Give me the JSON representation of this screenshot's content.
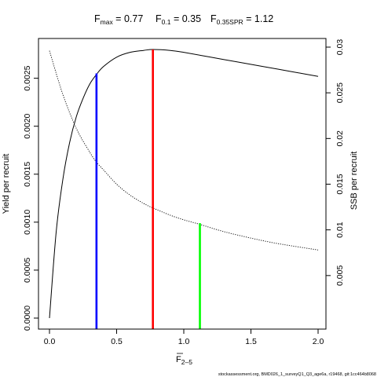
{
  "chart_data": {
    "type": "line",
    "title_parts": {
      "fmax_symbol": "F",
      "fmax_sub": "max",
      "fmax_value": " = 0.77",
      "f01_symbol": "F",
      "f01_sub": "0.1",
      "f01_value": " = 0.35",
      "fspr_symbol": "F",
      "fspr_sub": "0.35SPR",
      "fspr_value": " = 1.12"
    },
    "xlabel": "F",
    "xlabel_sub": "2–5",
    "ylabel": "Yield per recruit",
    "y2label": "SSB per recruit",
    "xlim": [
      0,
      2
    ],
    "ylim": [
      0,
      0.0028
    ],
    "y2lim": [
      0,
      0.03
    ],
    "x_ticks": [
      "0.0",
      "0.5",
      "1.0",
      "1.5",
      "2.0"
    ],
    "x_tick_values": [
      0,
      0.5,
      1.0,
      1.5,
      2.0
    ],
    "y_ticks": [
      "0.0000",
      "0.0005",
      "0.0010",
      "0.0015",
      "0.0020",
      "0.0025"
    ],
    "y_tick_values": [
      0,
      0.0005,
      0.001,
      0.0015,
      0.002,
      0.0025
    ],
    "y2_ticks": [
      "0.005",
      "0.01",
      "0.015",
      "0.02",
      "0.025",
      "0.03"
    ],
    "y2_tick_values": [
      0.005,
      0.01,
      0.015,
      0.02,
      0.025,
      0.03
    ],
    "series": [
      {
        "name": "Yield per recruit",
        "axis": "left",
        "style": "solid",
        "x": [
          0,
          0.05,
          0.1,
          0.15,
          0.2,
          0.25,
          0.3,
          0.35,
          0.4,
          0.5,
          0.6,
          0.7,
          0.77,
          0.9,
          1.0,
          1.2,
          1.4,
          1.6,
          1.8,
          2.0
        ],
        "y": [
          0,
          0.0009,
          0.00145,
          0.00183,
          0.0021,
          0.00229,
          0.00244,
          0.00254,
          0.00262,
          0.00272,
          0.00277,
          0.00279,
          0.0028,
          0.00279,
          0.00277,
          0.00272,
          0.00267,
          0.00262,
          0.00257,
          0.00252
        ]
      },
      {
        "name": "SSB per recruit",
        "axis": "right",
        "style": "dotted",
        "x": [
          0,
          0.1,
          0.2,
          0.3,
          0.35,
          0.4,
          0.5,
          0.6,
          0.7,
          0.77,
          0.9,
          1.0,
          1.12,
          1.3,
          1.5,
          1.7,
          2.0
        ],
        "y": [
          0.0296,
          0.0248,
          0.0211,
          0.0185,
          0.0174,
          0.0166,
          0.015,
          0.0138,
          0.0129,
          0.0124,
          0.0116,
          0.0111,
          0.0106,
          0.0098,
          0.0091,
          0.0085,
          0.0078
        ]
      }
    ],
    "reference_lines": [
      {
        "x": 0.35,
        "y": 0.00255,
        "color": "#0000ff"
      },
      {
        "x": 0.77,
        "y": 0.0028,
        "color": "#ff0000"
      },
      {
        "x": 1.12,
        "y": 0.00099,
        "color": "#00ff00"
      }
    ],
    "grid": false,
    "legend": "none"
  },
  "footer": "stockassessment.org, BMD026_1_surveyQ1_Q3_age6a, r19468, git:1cc464b8068"
}
